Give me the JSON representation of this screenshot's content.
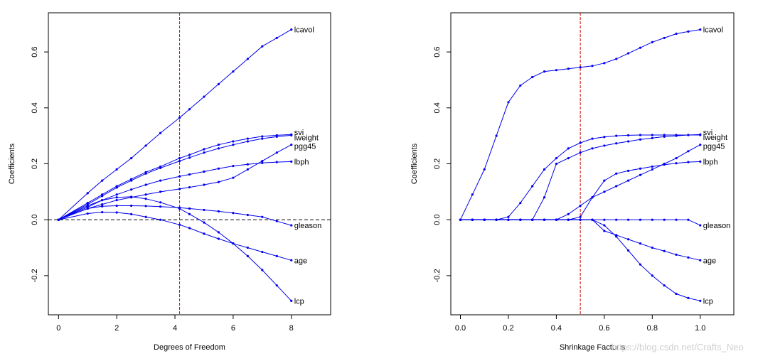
{
  "watermark": "https://blog.csdn.net/Crafts_Neo",
  "colors": {
    "series": "#0000ee",
    "cutoff": "#cc0000",
    "zero": "#000000"
  },
  "chart_data": [
    {
      "type": "line",
      "xlabel": "Degrees of Freedom",
      "ylabel": "Coefficients",
      "xlim": [
        -0.35,
        9.35
      ],
      "ylim": [
        -0.34,
        0.74
      ],
      "xticks": [
        0,
        2,
        4,
        6,
        8
      ],
      "yticks": [
        -0.2,
        0.0,
        0.2,
        0.4,
        0.6
      ],
      "vline": 4.16,
      "hline": 0.0,
      "x": [
        0,
        1.0,
        1.5,
        2.0,
        2.5,
        3.0,
        3.5,
        4.16,
        4.5,
        5.0,
        5.5,
        6.0,
        6.5,
        7.0,
        7.5,
        8.0
      ],
      "series": [
        {
          "name": "lcavol",
          "values": [
            0,
            0.095,
            0.14,
            0.18,
            0.22,
            0.265,
            0.31,
            0.365,
            0.395,
            0.44,
            0.485,
            0.53,
            0.575,
            0.62,
            0.65,
            0.68
          ]
        },
        {
          "name": "svi",
          "values": [
            0,
            0.06,
            0.09,
            0.12,
            0.145,
            0.17,
            0.19,
            0.22,
            0.232,
            0.252,
            0.268,
            0.28,
            0.29,
            0.298,
            0.302,
            0.305
          ]
        },
        {
          "name": "lweight",
          "values": [
            0,
            0.055,
            0.085,
            0.115,
            0.14,
            0.165,
            0.185,
            0.21,
            0.222,
            0.24,
            0.255,
            0.268,
            0.28,
            0.29,
            0.297,
            0.302
          ]
        },
        {
          "name": "pgg45",
          "values": [
            0,
            0.04,
            0.055,
            0.07,
            0.08,
            0.09,
            0.1,
            0.11,
            0.116,
            0.125,
            0.135,
            0.15,
            0.18,
            0.21,
            0.24,
            0.268
          ]
        },
        {
          "name": "lbph",
          "values": [
            0,
            0.045,
            0.07,
            0.09,
            0.108,
            0.125,
            0.14,
            0.155,
            0.162,
            0.172,
            0.183,
            0.192,
            0.198,
            0.203,
            0.206,
            0.208
          ]
        },
        {
          "name": "gleason",
          "values": [
            0,
            0.04,
            0.048,
            0.05,
            0.05,
            0.049,
            0.047,
            0.043,
            0.04,
            0.035,
            0.03,
            0.024,
            0.017,
            0.01,
            -0.005,
            -0.02
          ]
        },
        {
          "name": "age",
          "values": [
            0,
            0.022,
            0.027,
            0.026,
            0.02,
            0.01,
            0.0,
            -0.018,
            -0.03,
            -0.05,
            -0.068,
            -0.085,
            -0.1,
            -0.115,
            -0.13,
            -0.145
          ]
        },
        {
          "name": "lcp",
          "values": [
            0,
            0.05,
            0.07,
            0.08,
            0.082,
            0.075,
            0.062,
            0.04,
            0.02,
            -0.01,
            -0.045,
            -0.085,
            -0.13,
            -0.18,
            -0.235,
            -0.29
          ]
        }
      ]
    },
    {
      "type": "line",
      "xlabel": "Shrinkage Factor s",
      "ylabel": "Coefficients",
      "xlim": [
        -0.04,
        1.14
      ],
      "ylim": [
        -0.34,
        0.74
      ],
      "xticks": [
        0.0,
        0.2,
        0.4,
        0.6,
        0.8,
        1.0
      ],
      "yticks": [
        -0.2,
        0.0,
        0.2,
        0.4,
        0.6
      ],
      "vline": 0.5,
      "hline": null,
      "x": [
        0,
        0.05,
        0.1,
        0.15,
        0.2,
        0.25,
        0.3,
        0.35,
        0.4,
        0.45,
        0.5,
        0.55,
        0.6,
        0.65,
        0.7,
        0.75,
        0.8,
        0.85,
        0.9,
        0.95,
        1.0
      ],
      "series": [
        {
          "name": "lcavol",
          "values": [
            0,
            0.09,
            0.18,
            0.3,
            0.42,
            0.48,
            0.51,
            0.53,
            0.535,
            0.54,
            0.545,
            0.55,
            0.56,
            0.575,
            0.595,
            0.615,
            0.635,
            0.65,
            0.665,
            0.673,
            0.68
          ]
        },
        {
          "name": "svi",
          "values": [
            0,
            0,
            0,
            0,
            0,
            0,
            0,
            0.08,
            0.2,
            0.22,
            0.24,
            0.255,
            0.265,
            0.273,
            0.28,
            0.287,
            0.292,
            0.297,
            0.3,
            0.303,
            0.305
          ]
        },
        {
          "name": "lweight",
          "values": [
            0,
            0,
            0,
            0,
            0.01,
            0.06,
            0.12,
            0.18,
            0.22,
            0.255,
            0.275,
            0.29,
            0.296,
            0.3,
            0.302,
            0.303,
            0.303,
            0.303,
            0.303,
            0.303,
            0.303
          ]
        },
        {
          "name": "pgg45",
          "values": [
            0,
            0,
            0,
            0,
            0,
            0,
            0,
            0,
            0,
            0.02,
            0.05,
            0.08,
            0.1,
            0.12,
            0.14,
            0.16,
            0.18,
            0.2,
            0.22,
            0.245,
            0.268
          ]
        },
        {
          "name": "lbph",
          "values": [
            0,
            0,
            0,
            0,
            0,
            0,
            0,
            0,
            0,
            0,
            0.01,
            0.08,
            0.14,
            0.165,
            0.175,
            0.183,
            0.19,
            0.197,
            0.202,
            0.206,
            0.208
          ]
        },
        {
          "name": "gleason",
          "values": [
            0,
            0,
            0,
            0,
            0,
            0,
            0,
            0,
            0,
            0,
            0,
            0,
            0,
            0,
            0,
            0,
            0,
            0,
            0,
            0,
            -0.02
          ]
        },
        {
          "name": "age",
          "values": [
            0,
            0,
            0,
            0,
            0,
            0,
            0,
            0,
            0,
            0,
            0,
            0,
            -0.04,
            -0.055,
            -0.07,
            -0.085,
            -0.1,
            -0.112,
            -0.125,
            -0.135,
            -0.145
          ]
        },
        {
          "name": "lcp",
          "values": [
            0,
            0,
            0,
            0,
            0,
            0,
            0,
            0,
            0,
            0,
            0,
            0,
            -0.02,
            -0.06,
            -0.11,
            -0.16,
            -0.2,
            -0.235,
            -0.265,
            -0.28,
            -0.29
          ]
        }
      ]
    }
  ]
}
